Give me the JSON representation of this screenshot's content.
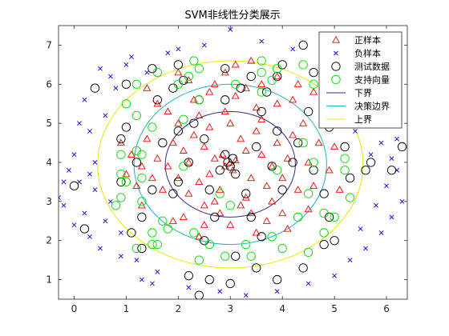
{
  "chart_data": {
    "type": "scatter",
    "title": "SVM非线性分类展示",
    "xlabel": "",
    "ylabel": "",
    "xlim": [
      -0.3,
      6.4
    ],
    "ylim": [
      0.5,
      7.5
    ],
    "x_ticks": [
      0,
      1,
      2,
      3,
      4,
      5,
      6
    ],
    "y_ticks": [
      1,
      2,
      3,
      4,
      5,
      6,
      7
    ],
    "grid": false,
    "legend_position": "top-right",
    "legend": [
      {
        "label": "正样本",
        "marker": "triangle",
        "color": "#ff0000"
      },
      {
        "label": "负样本",
        "marker": "x",
        "color": "#0000ff"
      },
      {
        "label": "测试数据",
        "marker": "circle",
        "color": "#000000"
      },
      {
        "label": "支持向量",
        "marker": "circle",
        "color": "#00dd00"
      },
      {
        "label": "下界",
        "marker": "line",
        "color": "#3a2a8c"
      },
      {
        "label": "决策边界",
        "marker": "line",
        "color": "#1ab5b5"
      },
      {
        "label": "上界",
        "marker": "line",
        "color": "#e8e800"
      }
    ],
    "boundaries": [
      {
        "name": "下界",
        "center": [
          3.0,
          3.95
        ],
        "rx": 1.25,
        "ry": 1.35,
        "color": "#3a2a8c"
      },
      {
        "name": "决策边界",
        "center": [
          3.0,
          3.95
        ],
        "rx": 1.85,
        "ry": 2.05,
        "color": "#1ab5b5"
      },
      {
        "name": "上界",
        "center": [
          3.0,
          3.95
        ],
        "rx": 2.55,
        "ry": 2.65,
        "color": "#e8e800"
      }
    ],
    "series": [
      {
        "name": "正样本",
        "marker": "triangle",
        "color": "#ff0000",
        "points": [
          [
            2.9,
            3.9
          ],
          [
            3.0,
            4.0
          ],
          [
            3.1,
            4.05
          ],
          [
            2.85,
            4.2
          ],
          [
            3.05,
            3.8
          ],
          [
            2.7,
            4.1
          ],
          [
            3.3,
            4.3
          ],
          [
            2.6,
            3.7
          ],
          [
            3.4,
            3.6
          ],
          [
            2.5,
            4.4
          ],
          [
            3.6,
            4.2
          ],
          [
            2.4,
            3.5
          ],
          [
            3.2,
            4.6
          ],
          [
            2.8,
            3.3
          ],
          [
            3.5,
            4.8
          ],
          [
            2.2,
            4.0
          ],
          [
            3.8,
            3.9
          ],
          [
            2.3,
            4.7
          ],
          [
            3.7,
            3.4
          ],
          [
            2.0,
            3.6
          ],
          [
            3.9,
            4.5
          ],
          [
            2.1,
            4.3
          ],
          [
            3.3,
            3.1
          ],
          [
            2.6,
            4.9
          ],
          [
            3.0,
            5.0
          ],
          [
            2.7,
            3.0
          ],
          [
            3.6,
            5.1
          ],
          [
            2.4,
            5.2
          ],
          [
            2.2,
            3.2
          ],
          [
            4.0,
            3.6
          ],
          [
            1.9,
            4.5
          ],
          [
            3.8,
            3.0
          ],
          [
            2.5,
            2.9
          ],
          [
            3.2,
            2.9
          ],
          [
            1.8,
            3.9
          ],
          [
            4.1,
            4.1
          ],
          [
            2.9,
            5.3
          ],
          [
            3.5,
            5.4
          ],
          [
            2.0,
            5.0
          ],
          [
            4.2,
            4.7
          ],
          [
            1.7,
            3.3
          ],
          [
            3.4,
            2.7
          ],
          [
            2.8,
            2.7
          ],
          [
            4.3,
            3.3
          ],
          [
            1.6,
            4.1
          ],
          [
            2.3,
            5.6
          ],
          [
            3.9,
            5.5
          ],
          [
            4.5,
            4.0
          ],
          [
            1.5,
            3.6
          ],
          [
            3.1,
            5.7
          ],
          [
            2.6,
            5.8
          ],
          [
            4.4,
            5.0
          ],
          [
            1.3,
            3.9
          ],
          [
            4.6,
            3.4
          ],
          [
            3.7,
            2.5
          ],
          [
            2.1,
            2.6
          ],
          [
            1.4,
            4.6
          ],
          [
            4.7,
            4.5
          ],
          [
            3.3,
            5.9
          ],
          [
            2.5,
            2.4
          ],
          [
            4.0,
            2.7
          ],
          [
            1.2,
            3.4
          ],
          [
            3.0,
            2.4
          ],
          [
            4.2,
            5.6
          ],
          [
            1.8,
            5.3
          ],
          [
            2.7,
            6.0
          ],
          [
            4.9,
            3.8
          ],
          [
            1.9,
            2.5
          ],
          [
            3.6,
            6.0
          ],
          [
            1.1,
            4.2
          ],
          [
            2.2,
            6.1
          ],
          [
            4.5,
            2.8
          ],
          [
            1.6,
            5.5
          ],
          [
            4.8,
            5.2
          ],
          [
            2.9,
            6.3
          ],
          [
            3.5,
            2.2
          ],
          [
            1.3,
            2.9
          ],
          [
            4.3,
            6.0
          ],
          [
            5.0,
            4.4
          ],
          [
            2.0,
            6.3
          ],
          [
            3.9,
            6.2
          ],
          [
            1.0,
            3.7
          ],
          [
            4.6,
            5.8
          ],
          [
            2.4,
            2.1
          ],
          [
            3.1,
            6.5
          ],
          [
            5.1,
            3.3
          ],
          [
            1.4,
            5.9
          ],
          [
            4.1,
            2.3
          ],
          [
            0.9,
            4.5
          ],
          [
            3.4,
            6.6
          ]
        ]
      },
      {
        "name": "负样本",
        "marker": "x",
        "color": "#0000ff",
        "points": [
          [
            -0.3,
            3.1
          ],
          [
            -0.2,
            2.9
          ],
          [
            0.0,
            4.2
          ],
          [
            0.1,
            3.5
          ],
          [
            -0.1,
            3.8
          ],
          [
            0.2,
            2.7
          ],
          [
            0.3,
            4.8
          ],
          [
            0.4,
            3.3
          ],
          [
            0.5,
            6.4
          ],
          [
            0.6,
            2.5
          ],
          [
            0.7,
            6.2
          ],
          [
            0.3,
            2.1
          ],
          [
            0.8,
            5.9
          ],
          [
            0.5,
            1.8
          ],
          [
            1.0,
            6.5
          ],
          [
            0.9,
            2.2
          ],
          [
            1.1,
            6.7
          ],
          [
            0.6,
            5.2
          ],
          [
            1.2,
            1.5
          ],
          [
            0.2,
            5.6
          ],
          [
            1.4,
            6.3
          ],
          [
            1.6,
            1.2
          ],
          [
            1.8,
            6.8
          ],
          [
            1.5,
            0.9
          ],
          [
            2.0,
            6.9
          ],
          [
            2.2,
            0.8
          ],
          [
            2.5,
            7.0
          ],
          [
            2.8,
            0.7
          ],
          [
            3.0,
            7.4
          ],
          [
            3.3,
            0.6
          ],
          [
            3.6,
            7.1
          ],
          [
            3.9,
            0.7
          ],
          [
            4.2,
            6.9
          ],
          [
            4.5,
            0.9
          ],
          [
            4.8,
            6.6
          ],
          [
            5.0,
            1.1
          ],
          [
            5.2,
            6.3
          ],
          [
            5.3,
            1.5
          ],
          [
            5.5,
            5.9
          ],
          [
            5.6,
            1.8
          ],
          [
            5.8,
            5.5
          ],
          [
            5.9,
            2.2
          ],
          [
            6.0,
            5.0
          ],
          [
            6.1,
            2.6
          ],
          [
            6.2,
            4.6
          ],
          [
            6.3,
            3.0
          ],
          [
            6.0,
            3.4
          ],
          [
            5.7,
            4.2
          ],
          [
            6.2,
            3.8
          ],
          [
            5.8,
            2.9
          ],
          [
            5.4,
            4.8
          ],
          [
            5.6,
            5.3
          ],
          [
            0.0,
            2.4
          ],
          [
            -0.2,
            3.5
          ],
          [
            0.4,
            4.0
          ],
          [
            0.7,
            3.0
          ],
          [
            0.1,
            5.0
          ],
          [
            0.9,
            1.6
          ],
          [
            1.3,
            1.0
          ],
          [
            5.1,
            5.8
          ],
          [
            5.5,
            2.3
          ],
          [
            6.1,
            4.1
          ],
          [
            0.3,
            3.7
          ],
          [
            5.9,
            4.5
          ]
        ]
      },
      {
        "name": "测试数据",
        "marker": "circle",
        "color": "#000000",
        "points": [
          [
            2.95,
            4.0
          ],
          [
            3.0,
            3.9
          ],
          [
            3.05,
            4.1
          ],
          [
            2.9,
            4.2
          ],
          [
            2.8,
            3.8
          ],
          [
            3.1,
            3.7
          ],
          [
            2.5,
            4.6
          ],
          [
            3.5,
            4.4
          ],
          [
            2.6,
            3.3
          ],
          [
            3.3,
            3.2
          ],
          [
            2.2,
            4.0
          ],
          [
            3.8,
            3.9
          ],
          [
            2.0,
            3.5
          ],
          [
            3.9,
            4.8
          ],
          [
            2.3,
            5.0
          ],
          [
            3.6,
            5.3
          ],
          [
            2.0,
            4.8
          ],
          [
            4.2,
            4.0
          ],
          [
            1.9,
            3.2
          ],
          [
            4.0,
            3.3
          ],
          [
            2.9,
            5.6
          ],
          [
            3.2,
            5.9
          ],
          [
            2.4,
            5.6
          ],
          [
            3.7,
            5.8
          ],
          [
            1.7,
            4.5
          ],
          [
            4.3,
            4.5
          ],
          [
            2.7,
            2.6
          ],
          [
            3.4,
            2.6
          ],
          [
            1.5,
            3.3
          ],
          [
            4.6,
            3.8
          ],
          [
            2.1,
            6.1
          ],
          [
            3.9,
            6.2
          ],
          [
            1.6,
            5.6
          ],
          [
            4.5,
            5.3
          ],
          [
            1.2,
            4.0
          ],
          [
            4.8,
            3.2
          ],
          [
            2.5,
            2.0
          ],
          [
            3.6,
            2.1
          ],
          [
            1.3,
            2.6
          ],
          [
            4.9,
            2.6
          ],
          [
            2.0,
            6.5
          ],
          [
            4.0,
            6.5
          ],
          [
            1.0,
            4.9
          ],
          [
            5.2,
            4.4
          ],
          [
            0.9,
            3.5
          ],
          [
            5.3,
            3.6
          ],
          [
            1.1,
            2.2
          ],
          [
            5.0,
            2.0
          ],
          [
            1.5,
            6.4
          ],
          [
            4.6,
            6.3
          ],
          [
            2.9,
            6.4
          ],
          [
            3.1,
            1.6
          ],
          [
            2.2,
            1.1
          ],
          [
            3.5,
            1.3
          ],
          [
            1.0,
            6.0
          ],
          [
            5.1,
            6.0
          ],
          [
            0.2,
            2.3
          ],
          [
            5.6,
            3.8
          ],
          [
            6.1,
            3.8
          ],
          [
            6.3,
            4.4
          ],
          [
            2.6,
            1.0
          ],
          [
            3.0,
            0.9
          ],
          [
            1.3,
            1.8
          ],
          [
            4.8,
            1.9
          ],
          [
            4.4,
            7.0
          ],
          [
            4.4,
            1.3
          ],
          [
            0.4,
            5.9
          ],
          [
            -0.0,
            3.4
          ],
          [
            2.4,
            0.6
          ],
          [
            3.9,
            1.0
          ],
          [
            5.7,
            4.0
          ],
          [
            1.9,
            5.9
          ],
          [
            3.4,
            6.2
          ],
          [
            0.9,
            4.6
          ],
          [
            4.9,
            4.9
          ]
        ]
      },
      {
        "name": "支持向量",
        "marker": "circle",
        "color": "#00dd00",
        "points": [
          [
            1.2,
            4.3
          ],
          [
            1.3,
            4.2
          ],
          [
            1.0,
            3.5
          ],
          [
            0.9,
            3.1
          ],
          [
            1.2,
            5.2
          ],
          [
            1.5,
            4.9
          ],
          [
            1.7,
            2.5
          ],
          [
            1.8,
            2.3
          ],
          [
            2.1,
            5.1
          ],
          [
            2.4,
            5.6
          ],
          [
            3.6,
            5.8
          ],
          [
            3.8,
            6.1
          ],
          [
            4.4,
            4.5
          ],
          [
            4.6,
            4.0
          ],
          [
            4.5,
            3.2
          ],
          [
            4.3,
            2.6
          ],
          [
            3.8,
            2.1
          ],
          [
            3.3,
            1.9
          ],
          [
            2.6,
            1.9
          ],
          [
            2.3,
            2.2
          ],
          [
            1.5,
            2.2
          ],
          [
            1.3,
            3.0
          ],
          [
            1.6,
            6.3
          ],
          [
            2.4,
            6.4
          ],
          [
            3.9,
            6.4
          ],
          [
            4.6,
            6.0
          ],
          [
            5.0,
            5.4
          ],
          [
            5.2,
            4.1
          ],
          [
            5.3,
            3.1
          ],
          [
            5.0,
            2.6
          ],
          [
            4.8,
            2.2
          ],
          [
            4.0,
            1.8
          ],
          [
            2.4,
            1.5
          ],
          [
            1.5,
            1.9
          ],
          [
            0.8,
            2.9
          ],
          [
            0.9,
            4.2
          ],
          [
            1.0,
            5.5
          ],
          [
            2.2,
            6.2
          ],
          [
            3.6,
            6.3
          ],
          [
            4.9,
            5.8
          ],
          [
            5.2,
            3.8
          ],
          [
            4.8,
            2.7
          ],
          [
            3.4,
            1.6
          ],
          [
            1.6,
            1.9
          ],
          [
            2.3,
            6.6
          ],
          [
            3.6,
            6.6
          ],
          [
            3.0,
            2.9
          ],
          [
            2.8,
            3.2
          ],
          [
            2.1,
            3.9
          ],
          [
            3.9,
            3.8
          ],
          [
            1.3,
            3.6
          ],
          [
            1.2,
            1.8
          ],
          [
            4.4,
            6.5
          ],
          [
            2.9,
            1.6
          ],
          [
            5.1,
            5.1
          ],
          [
            0.9,
            3.7
          ],
          [
            1.2,
            6.0
          ],
          [
            4.5,
            1.7
          ],
          [
            3.1,
            6.0
          ],
          [
            2.0,
            6.0
          ]
        ]
      }
    ]
  }
}
